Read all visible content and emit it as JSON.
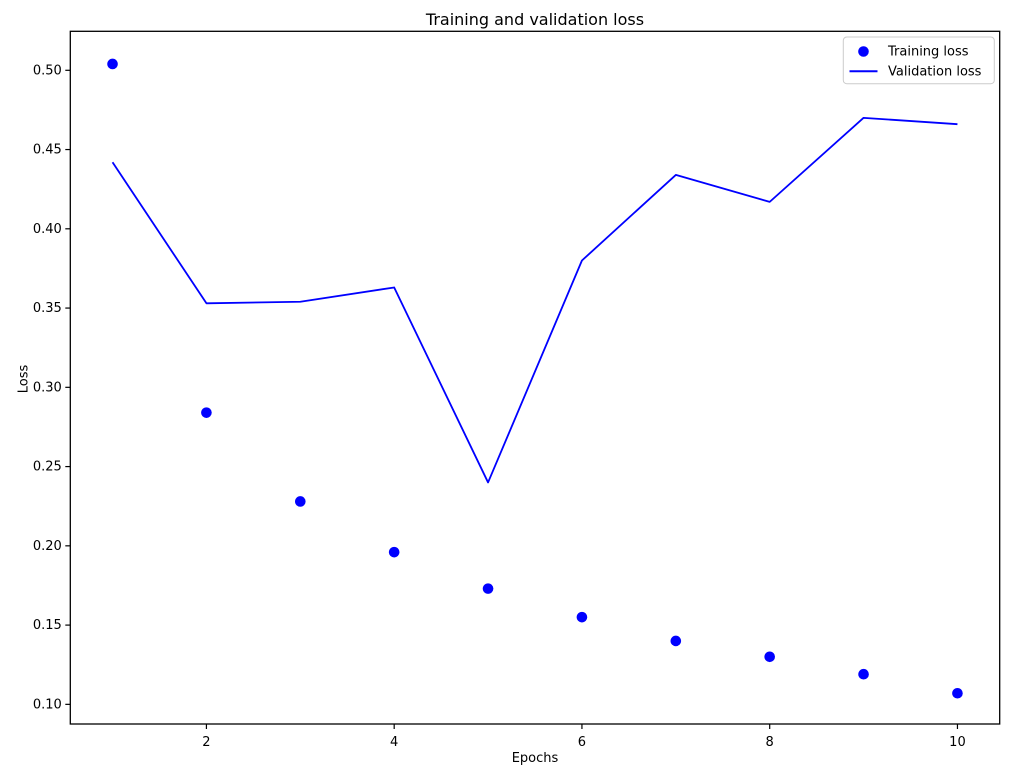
{
  "window": {
    "background": "#ffffff"
  },
  "chart_data": {
    "type": "line",
    "title": "Training and validation loss",
    "xlabel": "Epochs",
    "ylabel": "Loss",
    "x": [
      1,
      2,
      3,
      4,
      5,
      6,
      7,
      8,
      9,
      10
    ],
    "series": [
      {
        "name": "Training loss",
        "style": "scatter",
        "marker": "circle",
        "color": "#0000ff",
        "values": [
          0.504,
          0.284,
          0.228,
          0.196,
          0.173,
          0.155,
          0.14,
          0.13,
          0.119,
          0.107
        ]
      },
      {
        "name": "Validation loss",
        "style": "line",
        "color": "#0000ff",
        "values": [
          0.442,
          0.353,
          0.354,
          0.363,
          0.24,
          0.38,
          0.434,
          0.417,
          0.47,
          0.466
        ]
      }
    ],
    "xlim": [
      0.55,
      10.45
    ],
    "ylim": [
      0.0876,
      0.5246
    ],
    "xticks": [
      2,
      4,
      6,
      8,
      10
    ],
    "yticks": [
      0.1,
      0.15,
      0.2,
      0.25,
      0.3,
      0.35,
      0.4,
      0.45,
      0.5
    ],
    "grid": false,
    "legend": {
      "position": "upper right",
      "entries": [
        {
          "label": "Training loss",
          "marker": "dot"
        },
        {
          "label": "Validation loss",
          "marker": "line"
        }
      ]
    }
  }
}
